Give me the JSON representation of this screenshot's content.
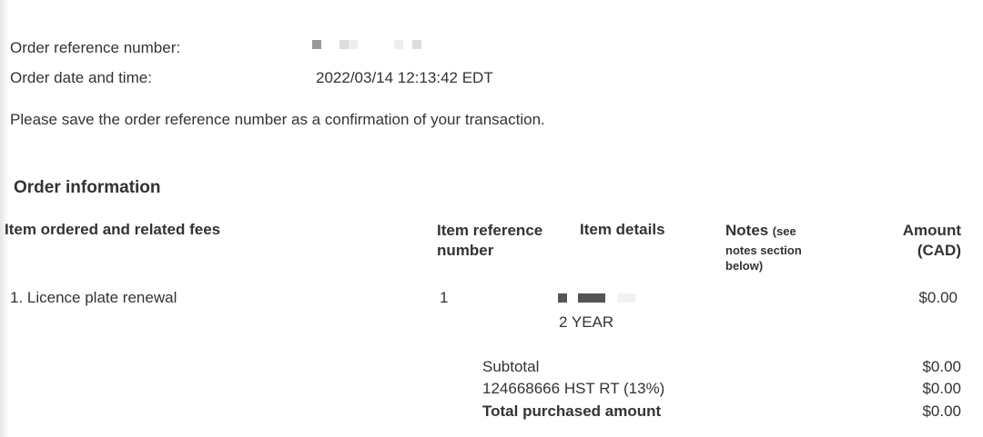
{
  "header": {
    "ref_label": "Order reference number:",
    "date_label": "Order date and time:",
    "date_value": "2022/03/14 12:13:42 EDT",
    "notice": "Please save the order reference number as a confirmation of your transaction."
  },
  "order_info": {
    "title": "Order information",
    "columns": {
      "item": "Item ordered and related fees",
      "ref_line1": "Item reference",
      "ref_line2": "number",
      "details": "Item details",
      "notes": "Notes",
      "notes_sub1": "(see",
      "notes_sub2": "notes section",
      "notes_sub3": "below)",
      "amount_line1": "Amount",
      "amount_line2": "(CAD)"
    },
    "rows": [
      {
        "item": "1. Licence plate renewal",
        "ref": "1",
        "details": "2 YEAR",
        "amount": "$0.00"
      }
    ],
    "totals": [
      {
        "label": "Subtotal",
        "amount": "$0.00"
      },
      {
        "label": "124668666 HST RT (13%)",
        "amount": "$0.00"
      },
      {
        "label": "Total purchased amount",
        "amount": "$0.00"
      }
    ]
  }
}
